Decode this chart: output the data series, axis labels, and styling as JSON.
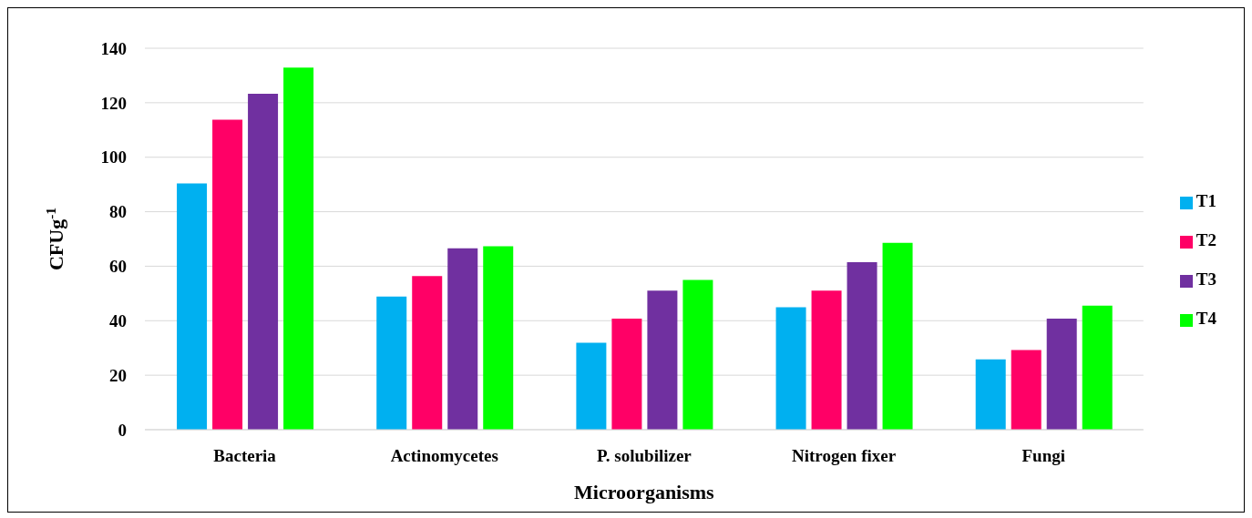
{
  "chart_data": {
    "type": "bar",
    "xlabel": "Microorganisms",
    "ylabel": "CFUg$^{-1}$",
    "categories": [
      "Bacteria",
      "Actinomycetes",
      "P. solubilizer",
      "Nitrogen fixer",
      "Fungi"
    ],
    "series": [
      {
        "name": "T1",
        "color": "#00b0f0",
        "values": [
          90.4,
          48.9,
          31.9,
          44.9,
          25.8
        ]
      },
      {
        "name": "T2",
        "color": "#ff0066",
        "values": [
          113.8,
          56.4,
          40.8,
          51,
          29.2
        ]
      },
      {
        "name": "T3",
        "color": "#7030a0",
        "values": [
          123.3,
          66.6,
          51,
          61.5,
          40.8
        ]
      },
      {
        "name": "T4",
        "color": "#00ff00",
        "values": [
          132.9,
          67.3,
          55,
          68.6,
          45.5
        ]
      }
    ],
    "ylim": [
      0,
      140
    ],
    "yticks": [
      0,
      20,
      40,
      60,
      80,
      100,
      120,
      140
    ],
    "grid": "y",
    "legend": "right"
  }
}
